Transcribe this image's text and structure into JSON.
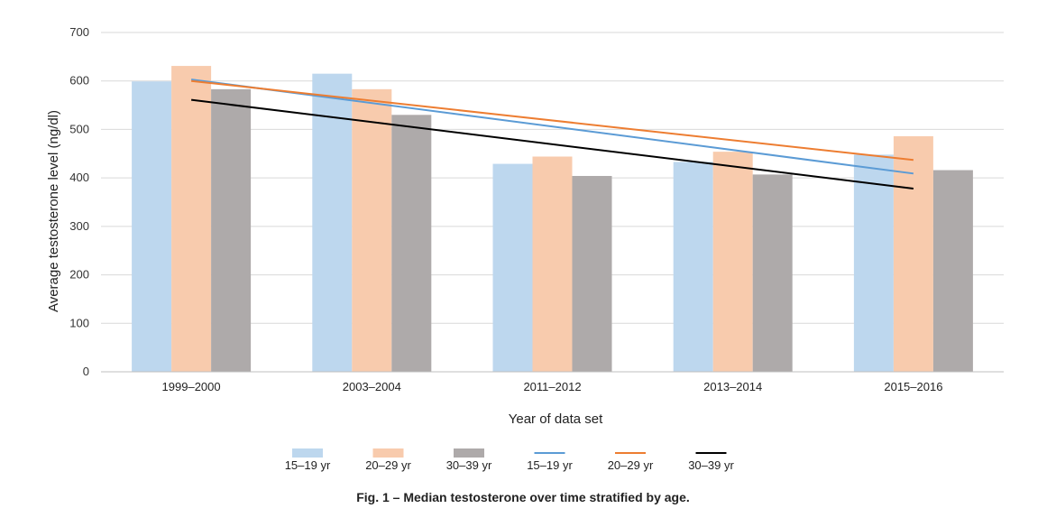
{
  "chart_data": {
    "type": "bar",
    "categories": [
      "1999–2000",
      "2003–2004",
      "2011–2012",
      "2013–2014",
      "2015–2016"
    ],
    "series": [
      {
        "name": "15–19 yr",
        "values": [
          599,
          615,
          429,
          433,
          448
        ],
        "color": "#bdd7ee"
      },
      {
        "name": "20–29 yr",
        "values": [
          631,
          583,
          444,
          454,
          486
        ],
        "color": "#f8cbad"
      },
      {
        "name": "30–39 yr",
        "values": [
          583,
          530,
          404,
          407,
          416
        ],
        "color": "#aeaaaa"
      }
    ],
    "trendlines": [
      {
        "name": "15–19 yr",
        "type": "linear",
        "start": 603,
        "end": 409,
        "color": "#5b9bd5"
      },
      {
        "name": "20–29 yr",
        "type": "linear",
        "start": 600,
        "end": 437,
        "color": "#ed7d31"
      },
      {
        "name": "30–39 yr",
        "type": "linear",
        "start": 561,
        "end": 378,
        "color": "#000000"
      }
    ],
    "xlabel": "Year of data set",
    "ylabel": "Average testosterone level (ng/dl)",
    "ylim": [
      0,
      700
    ],
    "yticks": [
      0,
      100,
      200,
      300,
      400,
      500,
      600,
      700
    ],
    "grid": true,
    "legend": "bottom"
  },
  "caption": "Fig. 1 – Median testosterone over time stratified by age."
}
